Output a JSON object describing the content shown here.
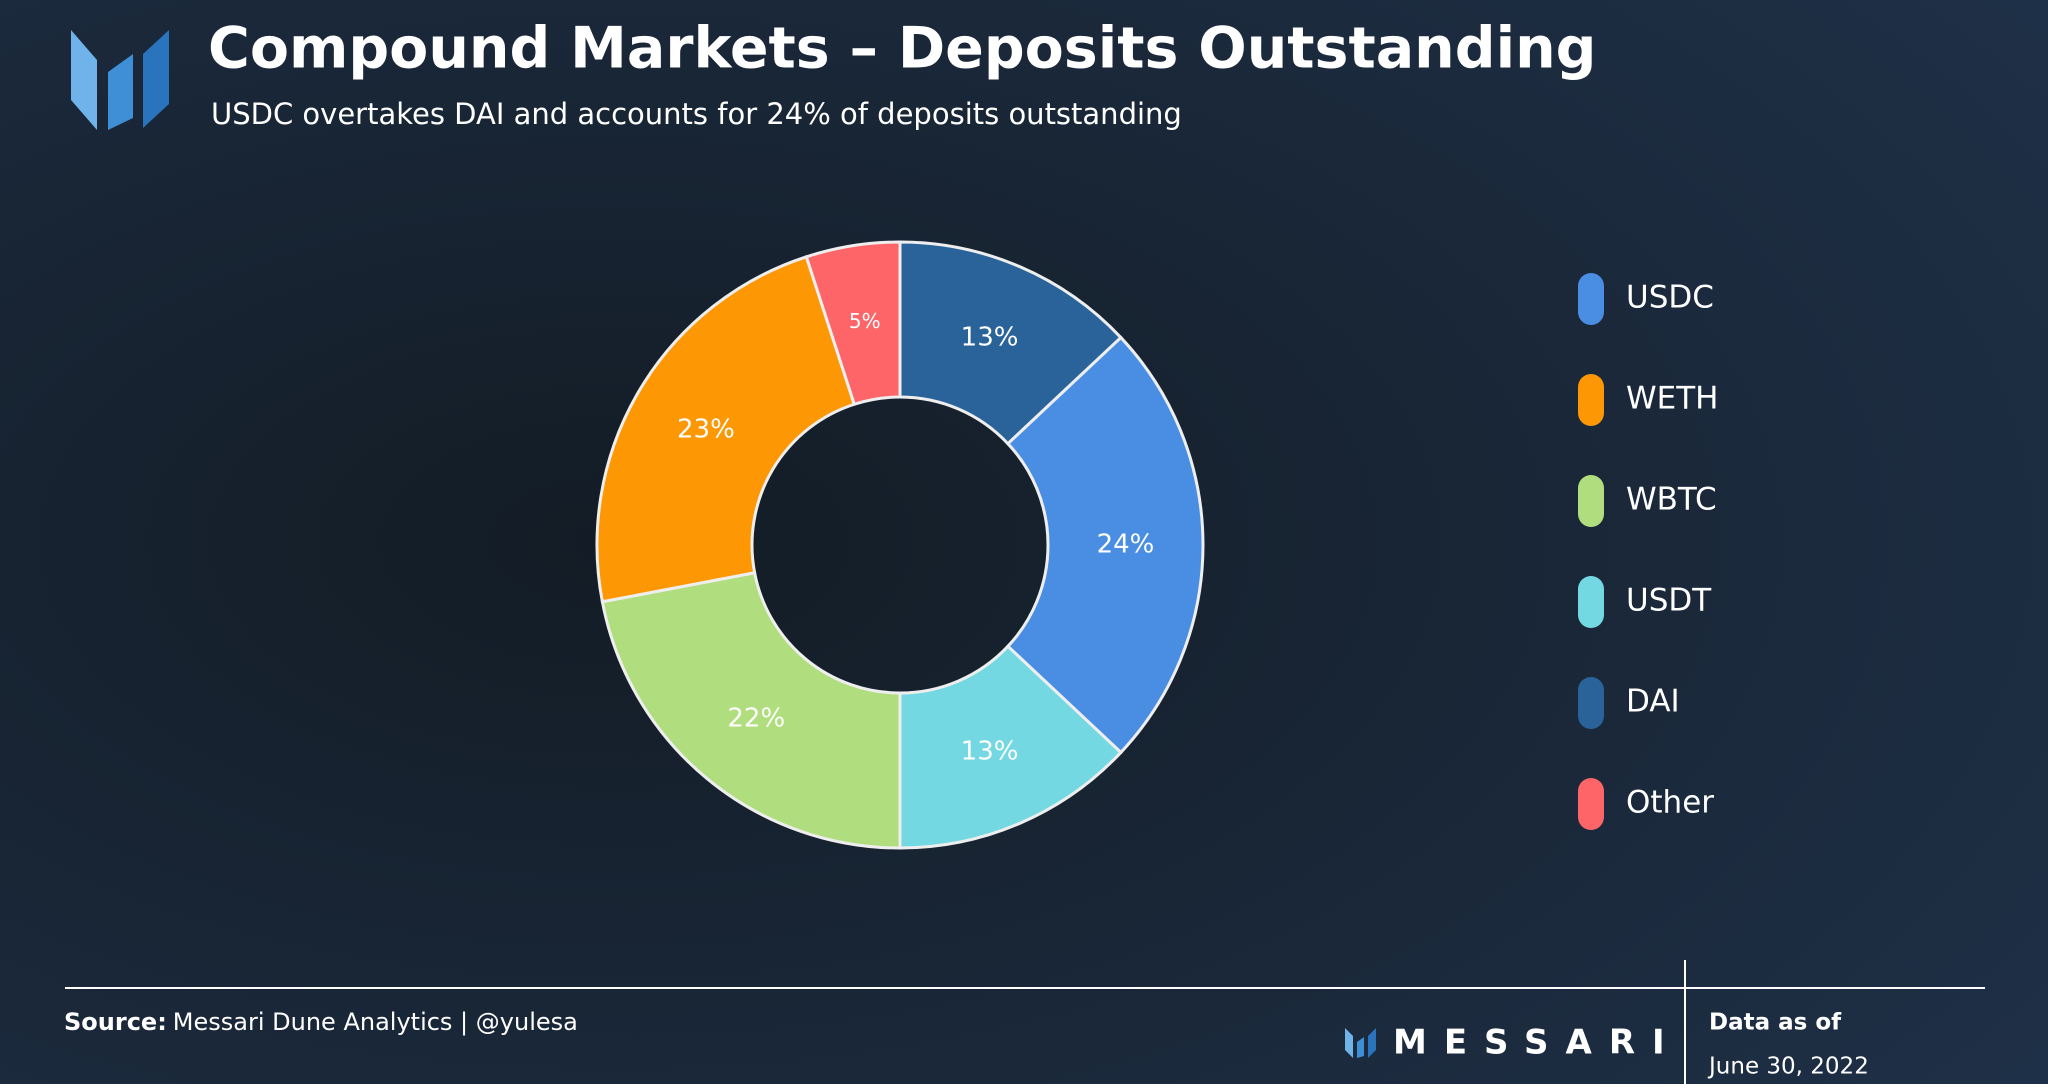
{
  "chart_data": {
    "type": "pie",
    "title": "Compound Markets – Deposits Outstanding",
    "subtitle": "USDC overtakes DAI and accounts for 24% of deposits outstanding",
    "categories": [
      "DAI",
      "USDC",
      "USDT",
      "WBTC",
      "WETH",
      "Other"
    ],
    "values": [
      13,
      24,
      13,
      22,
      23,
      5
    ],
    "value_labels": [
      "13%",
      "24%",
      "13%",
      "22%",
      "23%",
      "5%"
    ],
    "colors": [
      "#2a6399",
      "#4a8ee3",
      "#74d8e2",
      "#b0dd7e",
      "#fd9704",
      "#fd6569"
    ],
    "donut": true
  },
  "footer": {
    "source_label": "Source:",
    "source": "Messari Dune Analytics | @yulesa",
    "brand": "MESSARI",
    "date_label": "Data as of",
    "date": "June 30, 2022"
  }
}
